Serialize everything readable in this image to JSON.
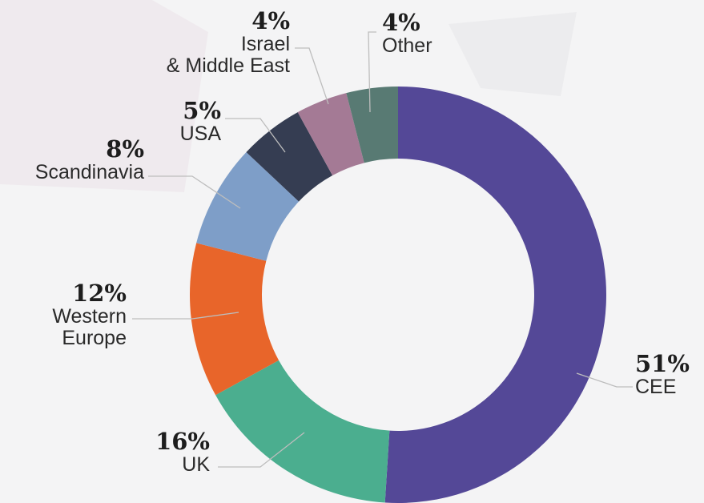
{
  "chart_data": {
    "type": "donut",
    "categories": [
      "CEE",
      "UK",
      "Western\nEurope",
      "Scandinavia",
      "USA",
      "Israel\n& Middle East",
      "Other"
    ],
    "values": [
      51,
      16,
      12,
      8,
      5,
      4,
      4
    ],
    "value_labels": [
      "51%",
      "16%",
      "12%",
      "8%",
      "5%",
      "4%",
      "4%"
    ],
    "colors": [
      "#544897",
      "#4bae8f",
      "#e8652a",
      "#7e9ec8",
      "#353d52",
      "#a47a95",
      "#587a73"
    ]
  }
}
